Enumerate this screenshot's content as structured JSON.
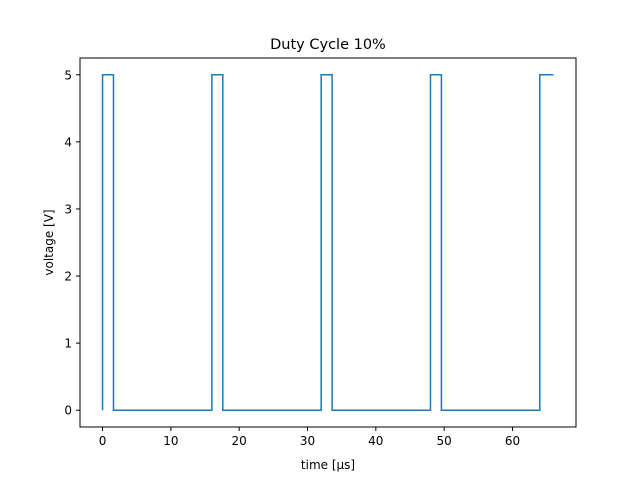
{
  "chart_data": {
    "type": "line",
    "title": "Duty Cycle 10%",
    "xlabel": "time [μs]",
    "ylabel": "voltage [V]",
    "xlim": [
      -3.3,
      69.3
    ],
    "ylim": [
      -0.25,
      5.25
    ],
    "xticks": [
      0,
      10,
      20,
      30,
      40,
      50,
      60
    ],
    "yticks": [
      0,
      1,
      2,
      3,
      4,
      5
    ],
    "grid": false,
    "series": [
      {
        "color": "#1f77b4",
        "step": "post",
        "x": [
          0,
          1.6,
          16,
          17.6,
          32,
          33.6,
          48,
          49.6,
          64,
          66
        ],
        "y": [
          5,
          0,
          5,
          0,
          5,
          0,
          5,
          0,
          5,
          5
        ]
      }
    ]
  }
}
